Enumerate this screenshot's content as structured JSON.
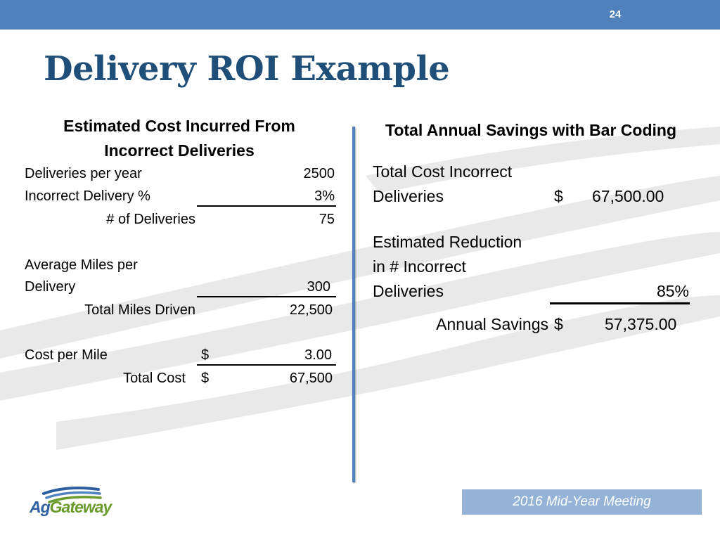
{
  "slide_number": "24",
  "title": "Delivery ROI Example",
  "left": {
    "heading_line1": "Estimated Cost Incurred From",
    "heading_line2": "Incorrect Deliveries",
    "deliveries_label": "Deliveries per year",
    "deliveries_value": "2500",
    "incorrect_pct_label": "Incorrect Delivery %",
    "incorrect_pct_value": "3%",
    "num_deliveries_label": "# of Deliveries",
    "num_deliveries_value": "75",
    "avg_miles_label_line1": "Average Miles per",
    "avg_miles_label_line2": "Delivery",
    "avg_miles_value": "300",
    "total_miles_label": "Total Miles Driven",
    "total_miles_value": "22,500",
    "cost_per_mile_label": "Cost per Mile",
    "cost_per_mile_currency": "$",
    "cost_per_mile_value": "3.00",
    "total_cost_label": "Total Cost",
    "total_cost_currency": "$",
    "total_cost_value": "67,500"
  },
  "right": {
    "heading": "Total Annual Savings with Bar Coding",
    "total_cost_label_line1": "Total Cost Incorrect",
    "total_cost_label_line2": "Deliveries",
    "total_cost_currency": "$",
    "total_cost_value": "67,500.00",
    "reduction_label_line1": "Estimated Reduction",
    "reduction_label_line2": "in # Incorrect",
    "reduction_label_line3": "Deliveries",
    "reduction_value": "85%",
    "annual_savings_label": "Annual Savings",
    "annual_savings_currency": "$",
    "annual_savings_value": "57,375.00"
  },
  "footer": {
    "meeting": "2016 Mid-Year Meeting"
  },
  "logo": {
    "text_part1": "Ag",
    "text_part2": "Gateway"
  },
  "colors": {
    "accent_blue": "#4f81bd",
    "title_blue": "#1f4e79",
    "footer_blue": "#95b3d7",
    "logo_green": "#6a9a2c"
  }
}
